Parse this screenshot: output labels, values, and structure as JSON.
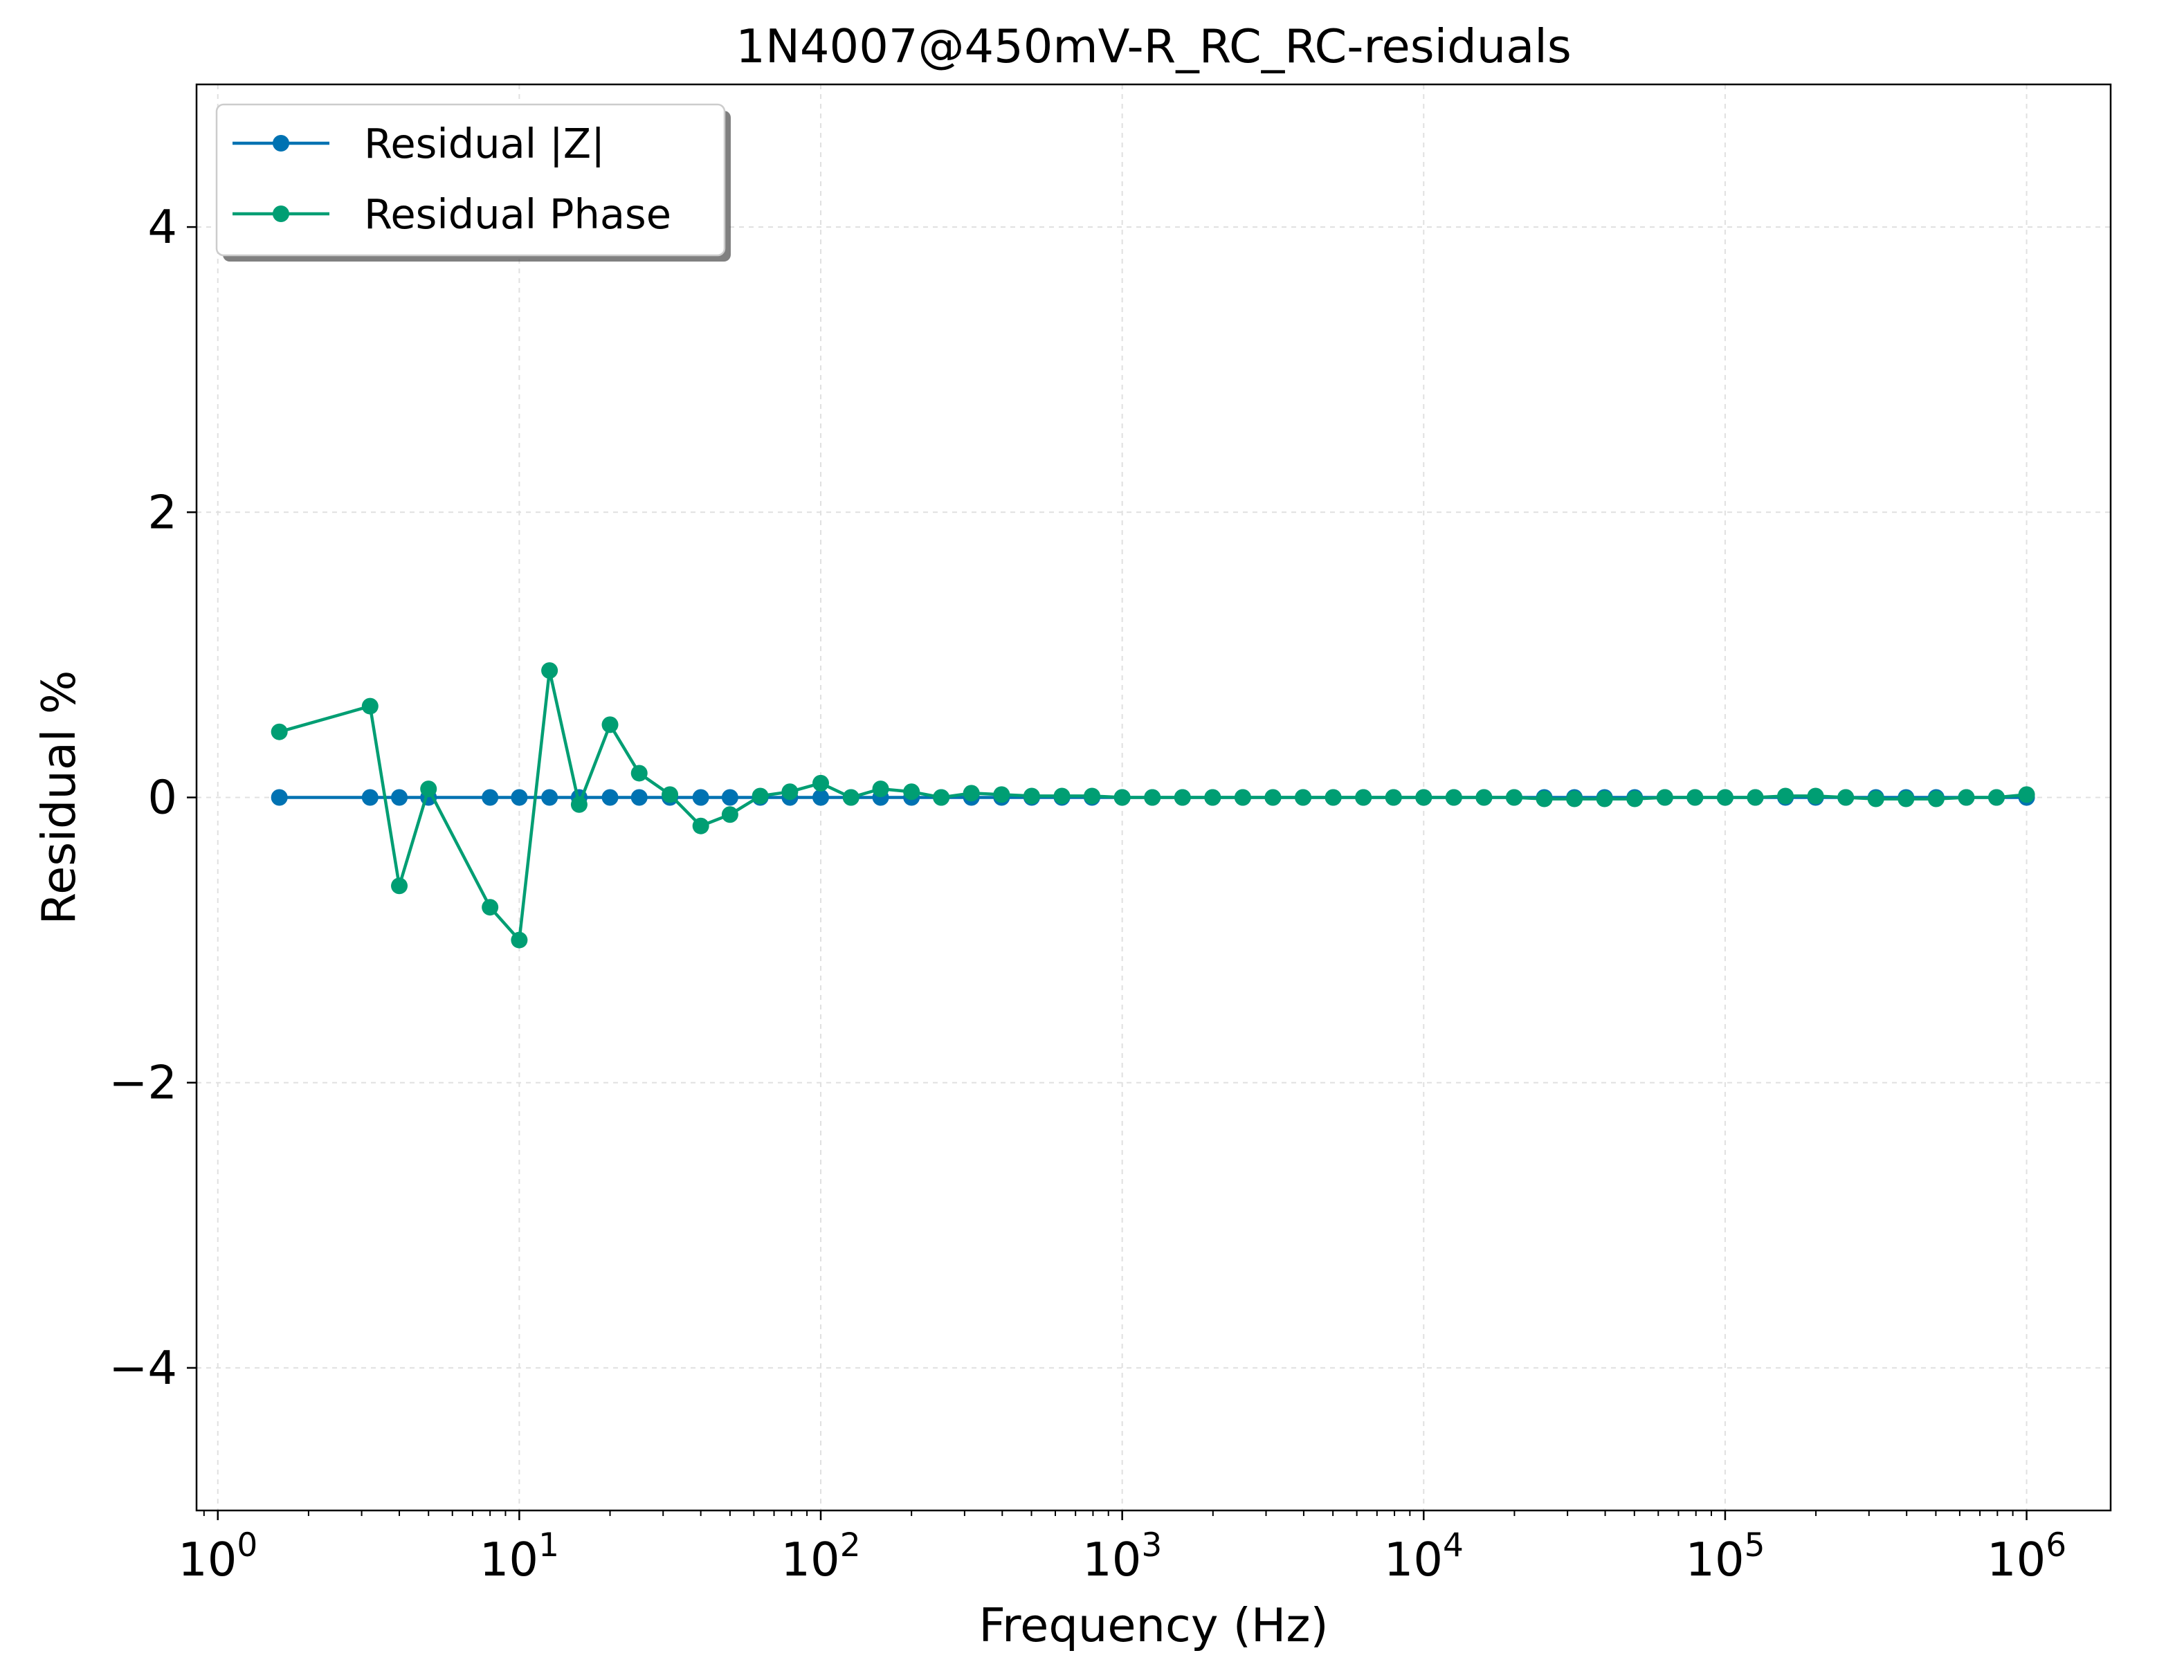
{
  "chart_data": {
    "type": "line",
    "title": "1N4007@450mV-R_RC_RC-residuals",
    "xlabel": "Frequency (Hz)",
    "ylabel": "Residual %",
    "xscale": "log",
    "xlim": [
      0.85,
      1900000
    ],
    "ylim": [
      -5,
      5
    ],
    "grid": true,
    "legend_position": "top-left",
    "x_ticks": [
      {
        "base": "10",
        "exp": "0",
        "value": 1
      },
      {
        "base": "10",
        "exp": "1",
        "value": 10
      },
      {
        "base": "10",
        "exp": "2",
        "value": 100
      },
      {
        "base": "10",
        "exp": "3",
        "value": 1000
      },
      {
        "base": "10",
        "exp": "4",
        "value": 10000
      },
      {
        "base": "10",
        "exp": "5",
        "value": 100000
      },
      {
        "base": "10",
        "exp": "6",
        "value": 1000000
      }
    ],
    "y_ticks": [
      {
        "label": "−4",
        "value": -4
      },
      {
        "label": "−2",
        "value": -2
      },
      {
        "label": "0",
        "value": 0
      },
      {
        "label": "2",
        "value": 2
      },
      {
        "label": "4",
        "value": 4
      }
    ],
    "x": [
      1.6,
      3.2,
      4,
      5,
      8,
      10,
      12.6,
      15.8,
      20,
      25,
      31.6,
      40,
      50,
      63,
      79,
      100,
      126,
      158,
      200,
      251,
      316,
      398,
      501,
      631,
      794,
      1000,
      1259,
      1585,
      1995,
      2512,
      3162,
      3981,
      5012,
      6310,
      7943,
      10000,
      12589,
      15849,
      19953,
      25119,
      31623,
      39811,
      50119,
      63096,
      79433,
      100000,
      125893,
      158489,
      199526,
      251189,
      316228,
      398107,
      501187,
      630957,
      794328,
      1000000
    ],
    "series": [
      {
        "name": "Residual |Z|",
        "color": "#0072B2",
        "values": [
          0,
          0,
          0,
          0,
          0,
          0,
          0,
          0,
          0,
          0,
          0,
          0,
          0,
          0,
          0,
          0,
          0,
          0,
          0,
          0,
          0,
          0,
          0,
          0,
          0,
          0,
          0,
          0,
          0,
          0,
          0,
          0,
          0,
          0,
          0,
          0,
          0,
          0,
          0,
          0,
          0,
          0,
          0,
          0,
          0,
          0,
          0,
          0,
          0,
          0,
          0,
          0,
          0,
          0,
          0,
          0
        ]
      },
      {
        "name": "Residual Phase",
        "color": "#009E73",
        "values": [
          0.46,
          0.64,
          -0.62,
          0.06,
          -0.77,
          -1.0,
          0.89,
          -0.05,
          0.51,
          0.17,
          0.02,
          -0.2,
          -0.12,
          0.01,
          0.04,
          0.1,
          0.0,
          0.06,
          0.04,
          0.0,
          0.03,
          0.02,
          0.01,
          0.01,
          0.01,
          0.0,
          0.0,
          0.0,
          0.0,
          0.0,
          0.0,
          0.0,
          0.0,
          0.0,
          0.0,
          0.0,
          0.0,
          0.0,
          0.0,
          -0.01,
          -0.01,
          -0.01,
          -0.01,
          0.0,
          0.0,
          0.0,
          0.0,
          0.01,
          0.01,
          0.0,
          -0.01,
          -0.01,
          -0.01,
          0.0,
          0.0,
          0.02
        ]
      }
    ]
  }
}
